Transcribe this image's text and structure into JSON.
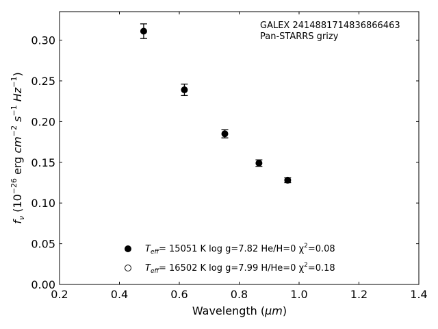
{
  "chart_data": {
    "type": "scatter",
    "xlabel": {
      "main": "Wavelength (",
      "unit": "μm",
      "close": ")"
    },
    "ylabel": {
      "f": "f",
      "sub": "ν",
      "pre": " (10",
      "exp": "−26",
      "erg": " erg ",
      "cm": "cm",
      "cmexp": "−2",
      "s": " s",
      "sexp": "−1",
      "hz": " Hz",
      "hzexp": "−1",
      "close": ")"
    },
    "xlim": [
      0.2,
      1.4
    ],
    "ylim": [
      0.0,
      0.335
    ],
    "xticks": [
      0.2,
      0.4,
      0.6,
      0.8,
      1.0,
      1.2,
      1.4
    ],
    "xtick_labels": [
      "0.2",
      "0.4",
      "0.6",
      "0.8",
      "1.0",
      "1.2",
      "1.4"
    ],
    "yticks": [
      0.0,
      0.05,
      0.1,
      0.15,
      0.2,
      0.25,
      0.3
    ],
    "ytick_labels": [
      "0.00",
      "0.05",
      "0.10",
      "0.15",
      "0.20",
      "0.25",
      "0.30"
    ],
    "annotation": [
      "GALEX 2414881714836866463",
      "Pan-STARRS grizy"
    ],
    "series": [
      {
        "x": [
          0.481,
          0.617,
          0.752,
          0.866,
          0.962
        ],
        "y": [
          0.311,
          0.239,
          0.185,
          0.149,
          0.128
        ],
        "err": [
          0.009,
          0.007,
          0.005,
          0.004,
          0.003
        ],
        "marker": "filled"
      }
    ],
    "legend": [
      {
        "marker": "filled",
        "teff": "T",
        "eff": "eff",
        "text": "= 15051 K  log g=7.82  He/H=0  χ",
        "chi_exp": "2",
        "chi": "=0.08"
      },
      {
        "marker": "open",
        "teff": "T",
        "eff": "eff",
        "text": "= 16502 K  log g=7.99  H/He=0  χ",
        "chi_exp": "2",
        "chi": "=0.18"
      }
    ],
    "legend_position": "lower-center",
    "grid": false
  }
}
